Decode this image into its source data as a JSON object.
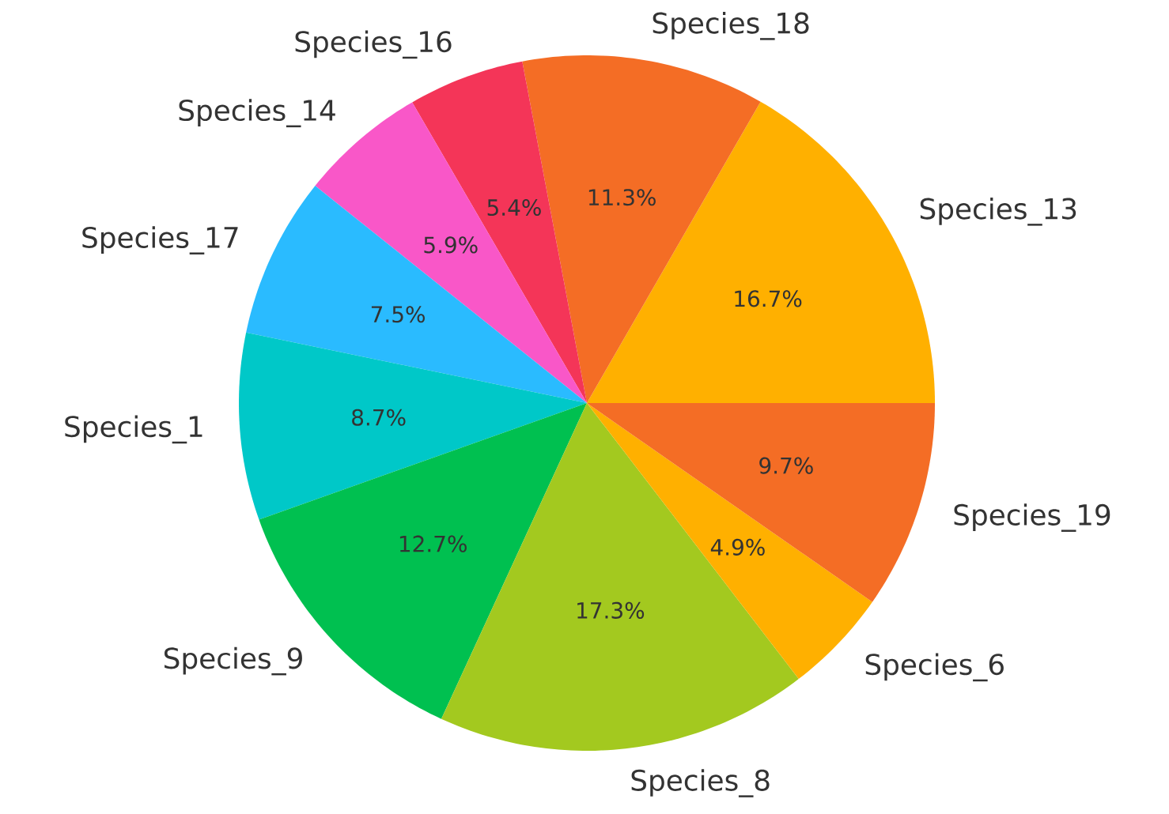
{
  "chart_data": {
    "type": "pie",
    "categories": [
      "Species_13",
      "Species_18",
      "Species_16",
      "Species_14",
      "Species_17",
      "Species_1",
      "Species_9",
      "Species_8",
      "Species_6",
      "Species_19"
    ],
    "values": [
      16.7,
      11.3,
      5.4,
      5.9,
      7.5,
      8.7,
      12.7,
      17.3,
      4.9,
      9.7
    ],
    "colors": [
      "#ffb000",
      "#f46d25",
      "#f43558",
      "#f957c8",
      "#2abbff",
      "#00c8c8",
      "#00c050",
      "#a3c91f",
      "#ffb000",
      "#f46d25"
    ],
    "value_labels": [
      "16.7%",
      "11.3%",
      "5.4%",
      "5.9%",
      "7.5%",
      "8.7%",
      "12.7%",
      "17.3%",
      "4.9%",
      "9.7%"
    ]
  }
}
